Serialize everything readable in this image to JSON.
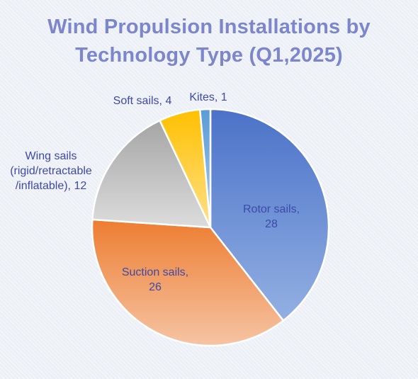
{
  "chart_data": {
    "type": "pie",
    "title_lines": [
      "Wind Propulsion Installations by",
      "Technology Type (Q1,2025)"
    ],
    "slices": [
      {
        "name": "Rotor sails",
        "value": 28,
        "label_lines": [
          "Rotor sails,",
          "28"
        ],
        "color_start": "#4b72c8",
        "color_end": "#93b0e3"
      },
      {
        "name": "Suction sails",
        "value": 26,
        "label_lines": [
          "Suction sails,",
          "26"
        ],
        "color_start": "#ed7d31",
        "color_end": "#f6c4a4"
      },
      {
        "name": "Wing sails (rigid/retractable/inflatable)",
        "value": 12,
        "label_lines": [
          "Wing sails",
          "(rigid/retractable",
          "/inflatable), 12"
        ],
        "color_start": "#a5a5a5",
        "color_end": "#dcdcdc"
      },
      {
        "name": "Soft sails",
        "value": 4,
        "label_lines": [
          "Soft sails, 4"
        ],
        "color_start": "#ffc000",
        "color_end": "#ffe08a"
      },
      {
        "name": "Kites",
        "value": 1,
        "label_lines": [
          "Kites, 1"
        ],
        "color_start": "#5b9bd5",
        "color_end": "#a9cdec"
      }
    ],
    "start_angle_deg": 0,
    "direction": "clockwise",
    "label_color": "#3d4aa8",
    "title_color": "#7b86cc",
    "legend": "none"
  }
}
